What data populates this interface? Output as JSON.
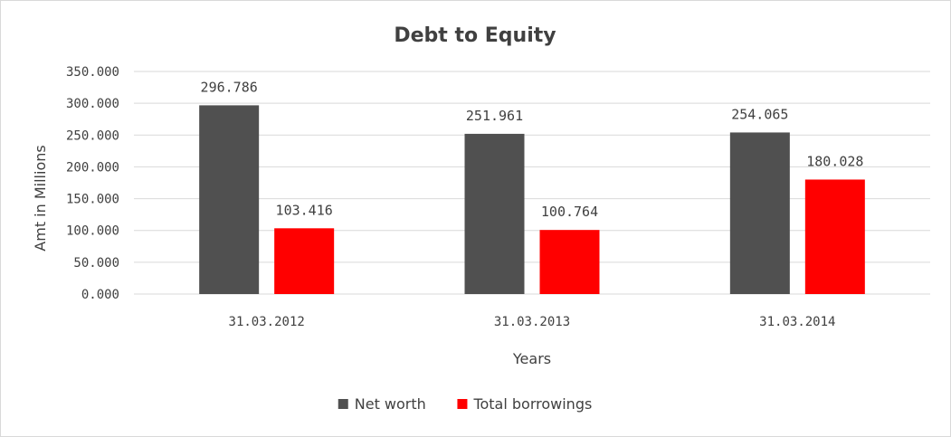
{
  "chart_data": {
    "type": "bar",
    "title": "Debt to Equity",
    "xlabel": "Years",
    "ylabel": "Amt in Millions",
    "categories": [
      "31.03.2012",
      "31.03.2013",
      "31.03.2014"
    ],
    "series": [
      {
        "name": "Net worth",
        "color": "#505050",
        "values": [
          296.786,
          251.961,
          254.065
        ],
        "labels": [
          "296.786",
          "251.961",
          "254.065"
        ]
      },
      {
        "name": "Total borrowings",
        "color": "#ff0000",
        "values": [
          103.416,
          100.764,
          180.028
        ],
        "labels": [
          "103.416",
          "100.764",
          "180.028"
        ]
      }
    ],
    "ylim": [
      0,
      350
    ],
    "yticks": [
      "0.000",
      "50.000",
      "100.000",
      "150.000",
      "200.000",
      "250.000",
      "300.000",
      "350.000"
    ],
    "grid": true,
    "legend_position": "bottom"
  }
}
